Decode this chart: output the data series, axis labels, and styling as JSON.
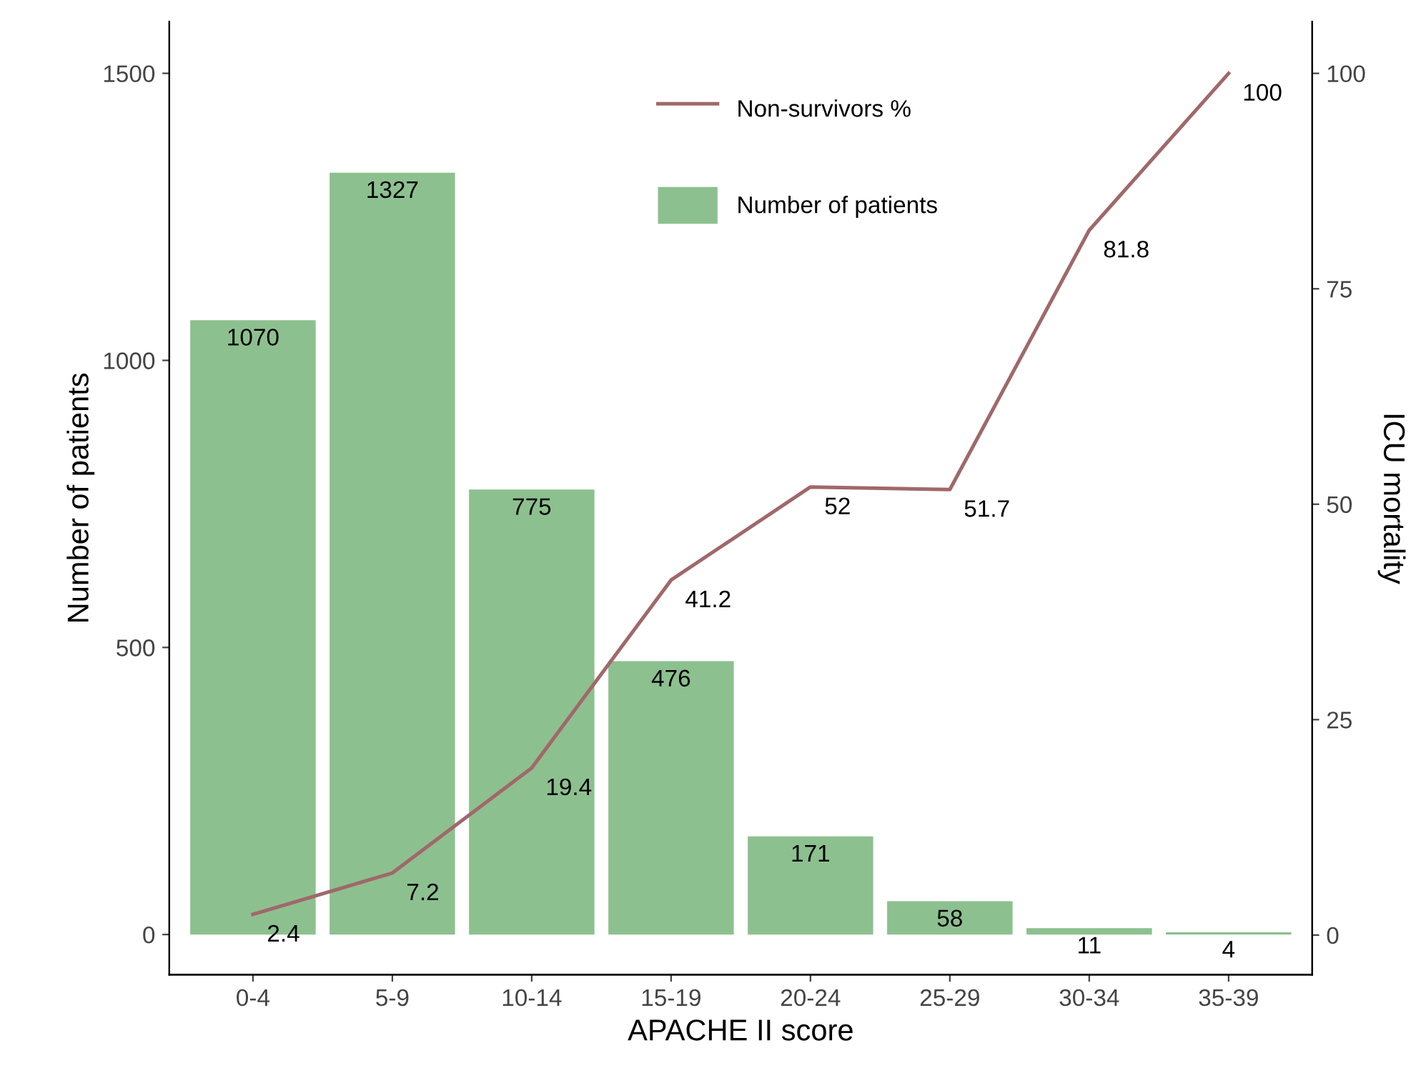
{
  "chart_data": {
    "type": "bar",
    "xlabel": "APACHE II score",
    "ylabel": "Number of patients",
    "y2label": "ICU mortality",
    "categories": [
      "0-4",
      "5-9",
      "10-14",
      "15-19",
      "20-24",
      "25-29",
      "30-34",
      "35-39"
    ],
    "series": [
      {
        "name": "Number of patients",
        "color": "#8dc08f",
        "values": [
          1070,
          1327,
          775,
          476,
          171,
          58,
          11,
          4
        ]
      },
      {
        "name": "Non-survivors %",
        "type": "line",
        "axis": "y2",
        "color": "#a0686a",
        "values": [
          2.4,
          7.2,
          19.4,
          41.2,
          52,
          51.7,
          81.8,
          100
        ]
      }
    ],
    "ylim": [
      -70,
      1590
    ],
    "yticks": [
      0,
      500,
      1000,
      1500
    ],
    "y2lim": [
      -4.6,
      106
    ],
    "y2ticks": [
      0,
      25,
      50,
      75,
      100
    ],
    "data_labels": true,
    "legend": "top",
    "grid": false
  }
}
